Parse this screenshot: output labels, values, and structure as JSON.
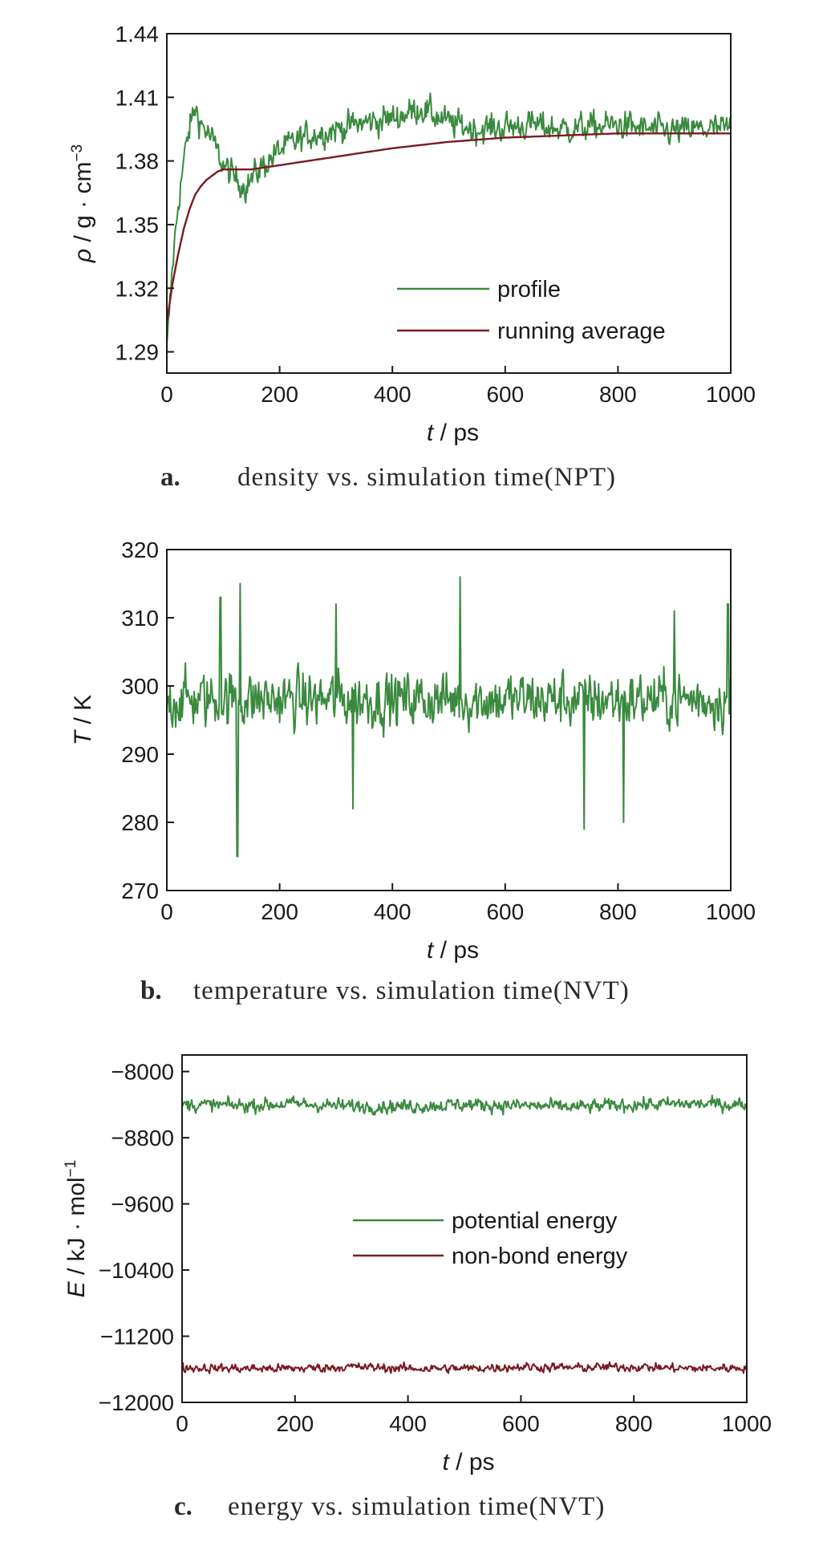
{
  "colors": {
    "green": "#3a8a3f",
    "red": "#7a1b20",
    "axis": "#1a1a1a"
  },
  "chart_data": [
    {
      "type": "line",
      "xlabel_var": "t",
      "xlabel_unit": " / ps",
      "ylabel_var": "ρ",
      "ylabel_unit": " / g · cm",
      "ylabel_sup": "−3",
      "xlim": [
        0,
        1000
      ],
      "ylim": [
        1.28,
        1.44
      ],
      "xticks": [
        0,
        200,
        400,
        600,
        800,
        1000
      ],
      "yticks": [
        1.29,
        1.32,
        1.35,
        1.38,
        1.41,
        1.44
      ],
      "ytick_labels": [
        "1.29",
        "1.32",
        "1.35",
        "1.38",
        "1.41",
        "1.44"
      ],
      "grid": false,
      "legend_position": "bottom-right",
      "caption_letter": "a.",
      "caption": "density vs. simulation time(NPT)",
      "series": [
        {
          "name": "profile",
          "color": "green",
          "x": [
            0,
            10,
            20,
            30,
            40,
            50,
            60,
            80,
            100,
            120,
            140,
            160,
            180,
            200,
            250,
            300,
            350,
            400,
            450,
            500,
            550,
            600,
            650,
            700,
            750,
            800,
            850,
            900,
            950,
            1000
          ],
          "y": [
            1.29,
            1.33,
            1.36,
            1.38,
            1.395,
            1.405,
            1.398,
            1.39,
            1.378,
            1.372,
            1.368,
            1.375,
            1.38,
            1.385,
            1.392,
            1.395,
            1.398,
            1.4,
            1.405,
            1.398,
            1.395,
            1.396,
            1.397,
            1.395,
            1.396,
            1.397,
            1.395,
            1.394,
            1.395,
            1.395
          ],
          "noise": 0.007
        },
        {
          "name": "running average",
          "color": "red",
          "x": [
            0,
            10,
            20,
            30,
            40,
            50,
            60,
            70,
            80,
            90,
            100,
            150,
            200,
            300,
            400,
            500,
            600,
            700,
            800,
            900,
            1000
          ],
          "y": [
            1.304,
            1.322,
            1.336,
            1.348,
            1.357,
            1.364,
            1.368,
            1.371,
            1.373,
            1.375,
            1.376,
            1.376,
            1.378,
            1.382,
            1.386,
            1.389,
            1.391,
            1.392,
            1.393,
            1.393,
            1.393
          ],
          "noise": 0
        }
      ]
    },
    {
      "type": "line",
      "xlabel_var": "t",
      "xlabel_unit": " / ps",
      "ylabel_var": "T",
      "ylabel_unit": " / K",
      "ylabel_sup": "",
      "xlim": [
        0,
        1000
      ],
      "ylim": [
        270,
        320
      ],
      "xticks": [
        0,
        200,
        400,
        600,
        800,
        1000
      ],
      "yticks": [
        270,
        280,
        290,
        300,
        310,
        320
      ],
      "ytick_labels": [
        "270",
        "280",
        "290",
        "300",
        "310",
        "320"
      ],
      "grid": false,
      "legend_position": "none",
      "caption_letter": "b.",
      "caption": "temperature vs. simulation time(NVT)",
      "series": [
        {
          "name": "",
          "color": "green",
          "x": [
            0,
            100,
            200,
            300,
            400,
            500,
            600,
            700,
            800,
            900,
            1000
          ],
          "y": [
            298,
            298,
            298,
            298,
            298,
            298,
            298,
            298,
            298,
            298,
            298
          ],
          "noise": 4.2,
          "spikes": [
            [
              125,
              275
            ],
            [
              130,
              315
            ],
            [
              520,
              316
            ],
            [
              330,
              282
            ],
            [
              740,
              279
            ],
            [
              810,
              280
            ],
            [
              95,
              313
            ],
            [
              300,
              312
            ],
            [
              900,
              311
            ],
            [
              995,
              312
            ]
          ]
        }
      ]
    },
    {
      "type": "line",
      "xlabel_var": "t",
      "xlabel_unit": " / ps",
      "ylabel_var": "E",
      "ylabel_unit": " / kJ · mol",
      "ylabel_sup": "−1",
      "xlim": [
        0,
        1000
      ],
      "ylim": [
        -12000,
        -7800
      ],
      "xticks": [
        0,
        200,
        400,
        600,
        800,
        1000
      ],
      "yticks": [
        -12000,
        -11200,
        -10400,
        -9600,
        -8800,
        -8000
      ],
      "ytick_labels": [
        "−12000",
        "−11200",
        "−10400",
        "−9600",
        "−8800",
        "−8000"
      ],
      "grid": false,
      "legend_position": "center",
      "caption_letter": "c.",
      "caption": "energy vs. simulation time(NVT)",
      "series": [
        {
          "name": "potential energy",
          "color": "green",
          "x": [
            0,
            100,
            200,
            300,
            400,
            500,
            600,
            700,
            800,
            900,
            1000
          ],
          "y": [
            -8400,
            -8410,
            -8390,
            -8420,
            -8420,
            -8400,
            -8410,
            -8430,
            -8400,
            -8390,
            -8400
          ],
          "noise": 85
        },
        {
          "name": "non-bond energy",
          "color": "red",
          "x": [
            0,
            100,
            200,
            300,
            400,
            500,
            600,
            700,
            800,
            900,
            1000
          ],
          "y": [
            -11580,
            -11590,
            -11590,
            -11570,
            -11590,
            -11590,
            -11570,
            -11580,
            -11570,
            -11590,
            -11580
          ],
          "noise": 55
        }
      ]
    }
  ]
}
